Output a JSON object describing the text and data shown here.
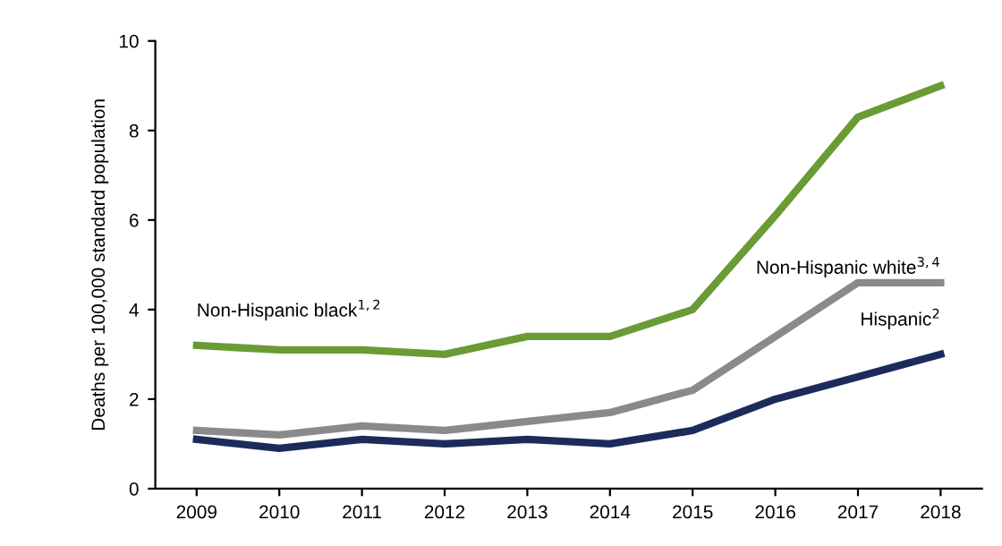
{
  "chart_data": {
    "type": "line",
    "ylabel": "Deaths per 100,000 standard population",
    "categories": [
      "2009",
      "2010",
      "2011",
      "2012",
      "2013",
      "2014",
      "2015",
      "2016",
      "2017",
      "2018"
    ],
    "series": [
      {
        "name": "Non-Hispanic black$^{1,2}$",
        "color": "#6a9b34",
        "values": [
          3.2,
          3.1,
          3.1,
          3.0,
          3.4,
          3.4,
          4.0,
          6.1,
          8.3,
          9.0
        ]
      },
      {
        "name": "Non-Hispanic white$^{3,4}$",
        "color": "#8a8a8a",
        "values": [
          1.3,
          1.2,
          1.4,
          1.3,
          1.5,
          1.7,
          2.2,
          3.4,
          4.6,
          4.6
        ]
      },
      {
        "name": "Hispanic$^{2}$",
        "color": "#1c2b5a",
        "values": [
          1.1,
          0.9,
          1.1,
          1.0,
          1.1,
          1.0,
          1.3,
          2.0,
          2.5,
          3.0
        ]
      }
    ],
    "ylim": [
      0,
      10
    ],
    "yticks": [
      0,
      2,
      4,
      6,
      8,
      10
    ],
    "grid": false,
    "legend": false,
    "marker": "none",
    "line_style": "solid"
  }
}
